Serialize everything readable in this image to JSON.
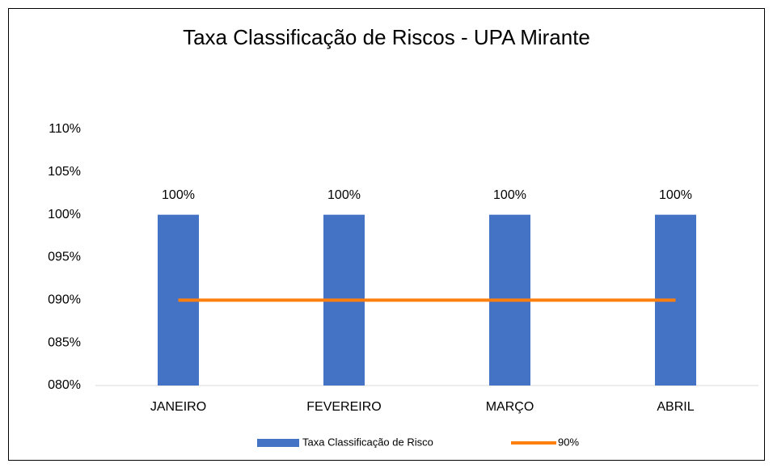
{
  "chart_data": {
    "type": "bar",
    "title": "Taxa Classificação de Riscos - UPA Mirante",
    "categories": [
      "JANEIRO",
      "FEVEREIRO",
      "MARÇO",
      "ABRIL"
    ],
    "series": [
      {
        "name": "Taxa Classificação de Risco",
        "type": "bar",
        "color": "#4472c4",
        "values": [
          100,
          100,
          100,
          100
        ],
        "value_labels": [
          "100%",
          "100%",
          "100%",
          "100%"
        ]
      },
      {
        "name": "90%",
        "type": "line",
        "color": "#ff7f0e",
        "values": [
          90,
          90,
          90,
          90
        ]
      }
    ],
    "ylim": [
      80,
      110
    ],
    "yticks": [
      {
        "value": 80,
        "label": "080%"
      },
      {
        "value": 85,
        "label": "085%"
      },
      {
        "value": 90,
        "label": "090%"
      },
      {
        "value": 95,
        "label": "095%"
      },
      {
        "value": 100,
        "label": "100%"
      },
      {
        "value": 105,
        "label": "105%"
      },
      {
        "value": 110,
        "label": "110%"
      }
    ],
    "grid": false,
    "legend": "bottom"
  }
}
